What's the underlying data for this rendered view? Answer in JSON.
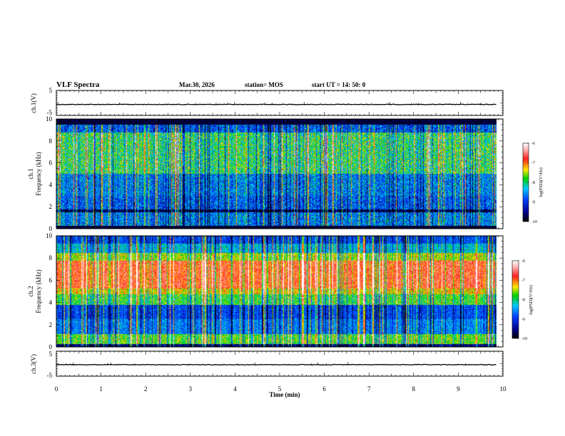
{
  "header": {
    "title": "VLF Spectra",
    "date": "Mar.30, 2026",
    "station": "station= MOS",
    "start": "start  UT =   14: 50: 0"
  },
  "colors": {
    "black": "#000000",
    "navy": "#00008c",
    "blue": "#0040ff",
    "cyan": "#00c8ff",
    "green": "#00d200",
    "yellow": "#ffe600",
    "red": "#ff2020",
    "pink": "#ffb4b4",
    "white": "#ffffff"
  },
  "chart_data": [
    {
      "type": "line",
      "id": "ch1-waveform",
      "ylabel": "ch.1(V)",
      "ylim": [
        -5,
        5
      ],
      "yticks": [
        "5",
        "-5"
      ],
      "xlim": [
        0,
        10
      ],
      "level": -0.6,
      "xlabel": ""
    },
    {
      "type": "heatmap",
      "id": "ch1-spectrogram",
      "ylabel": "ch.1\nFrequency (kHz)",
      "ylabel_line1": "ch.1",
      "ylabel_line2": "Frequency (kHz)",
      "ylim": [
        0,
        10
      ],
      "yticks": [
        "0",
        "2",
        "4",
        "6",
        "8",
        "10"
      ],
      "xlim": [
        0,
        10
      ],
      "data_end_min": 9.85,
      "colorbar": {
        "label": "log(PSD)(V²/Hz)",
        "range": [
          -10,
          -6
        ],
        "ticks": [
          "-6",
          "-7",
          "-8",
          "-9",
          "-10"
        ]
      },
      "bands": [
        {
          "f_low": 0,
          "f_high": 0.3,
          "level": -10
        },
        {
          "f_low": 0.3,
          "f_high": 1.5,
          "level": -8.6
        },
        {
          "f_low": 1.5,
          "f_high": 1.8,
          "level": -9.8
        },
        {
          "f_low": 1.8,
          "f_high": 3.0,
          "level": -8.8
        },
        {
          "f_low": 3.0,
          "f_high": 5.0,
          "level": -8.6
        },
        {
          "f_low": 5.0,
          "f_high": 8.8,
          "level": -7.9
        },
        {
          "f_low": 8.8,
          "f_high": 9.5,
          "level": -8.8
        },
        {
          "f_low": 9.5,
          "f_high": 10,
          "level": -10
        }
      ]
    },
    {
      "type": "heatmap",
      "id": "ch2-spectrogram",
      "ylabel": "ch.2\nFrequency (kHz)",
      "ylabel_line1": "ch.2",
      "ylabel_line2": "Frequency (kHz)",
      "ylim": [
        0,
        10
      ],
      "yticks": [
        "0",
        "2",
        "4",
        "6",
        "8",
        "10"
      ],
      "xlim": [
        0,
        10
      ],
      "data_end_min": 9.85,
      "colorbar": {
        "label": "log(PSD)(V²/Hz)",
        "range": [
          -10,
          -6
        ],
        "ticks": [
          "-6",
          "-7",
          "-8",
          "-9",
          "-10"
        ]
      },
      "bands": [
        {
          "f_low": 0,
          "f_high": 0.3,
          "level": -9.5
        },
        {
          "f_low": 0.3,
          "f_high": 1.2,
          "level": -7.7
        },
        {
          "f_low": 1.2,
          "f_high": 2.5,
          "level": -8.6
        },
        {
          "f_low": 2.5,
          "f_high": 3.8,
          "level": -8.9
        },
        {
          "f_low": 3.8,
          "f_high": 4.8,
          "level": -7.8
        },
        {
          "f_low": 4.8,
          "f_high": 5.3,
          "level": -7.3
        },
        {
          "f_low": 5.3,
          "f_high": 7.8,
          "level": -6.8
        },
        {
          "f_low": 7.8,
          "f_high": 8.5,
          "level": -7.5
        },
        {
          "f_low": 8.5,
          "f_high": 9.3,
          "level": -8.3
        },
        {
          "f_low": 9.3,
          "f_high": 10,
          "level": -8.9
        }
      ]
    },
    {
      "type": "line",
      "id": "ch3-waveform",
      "ylabel": "ch.3(V)",
      "ylim": [
        -5,
        5
      ],
      "yticks": [
        "5",
        "-5"
      ],
      "xlim": [
        0,
        10
      ],
      "level": -0.4,
      "xlabel": "Time  (min)",
      "xticks": [
        "0",
        "1",
        "2",
        "3",
        "4",
        "5",
        "6",
        "7",
        "8",
        "9",
        "10"
      ]
    }
  ]
}
